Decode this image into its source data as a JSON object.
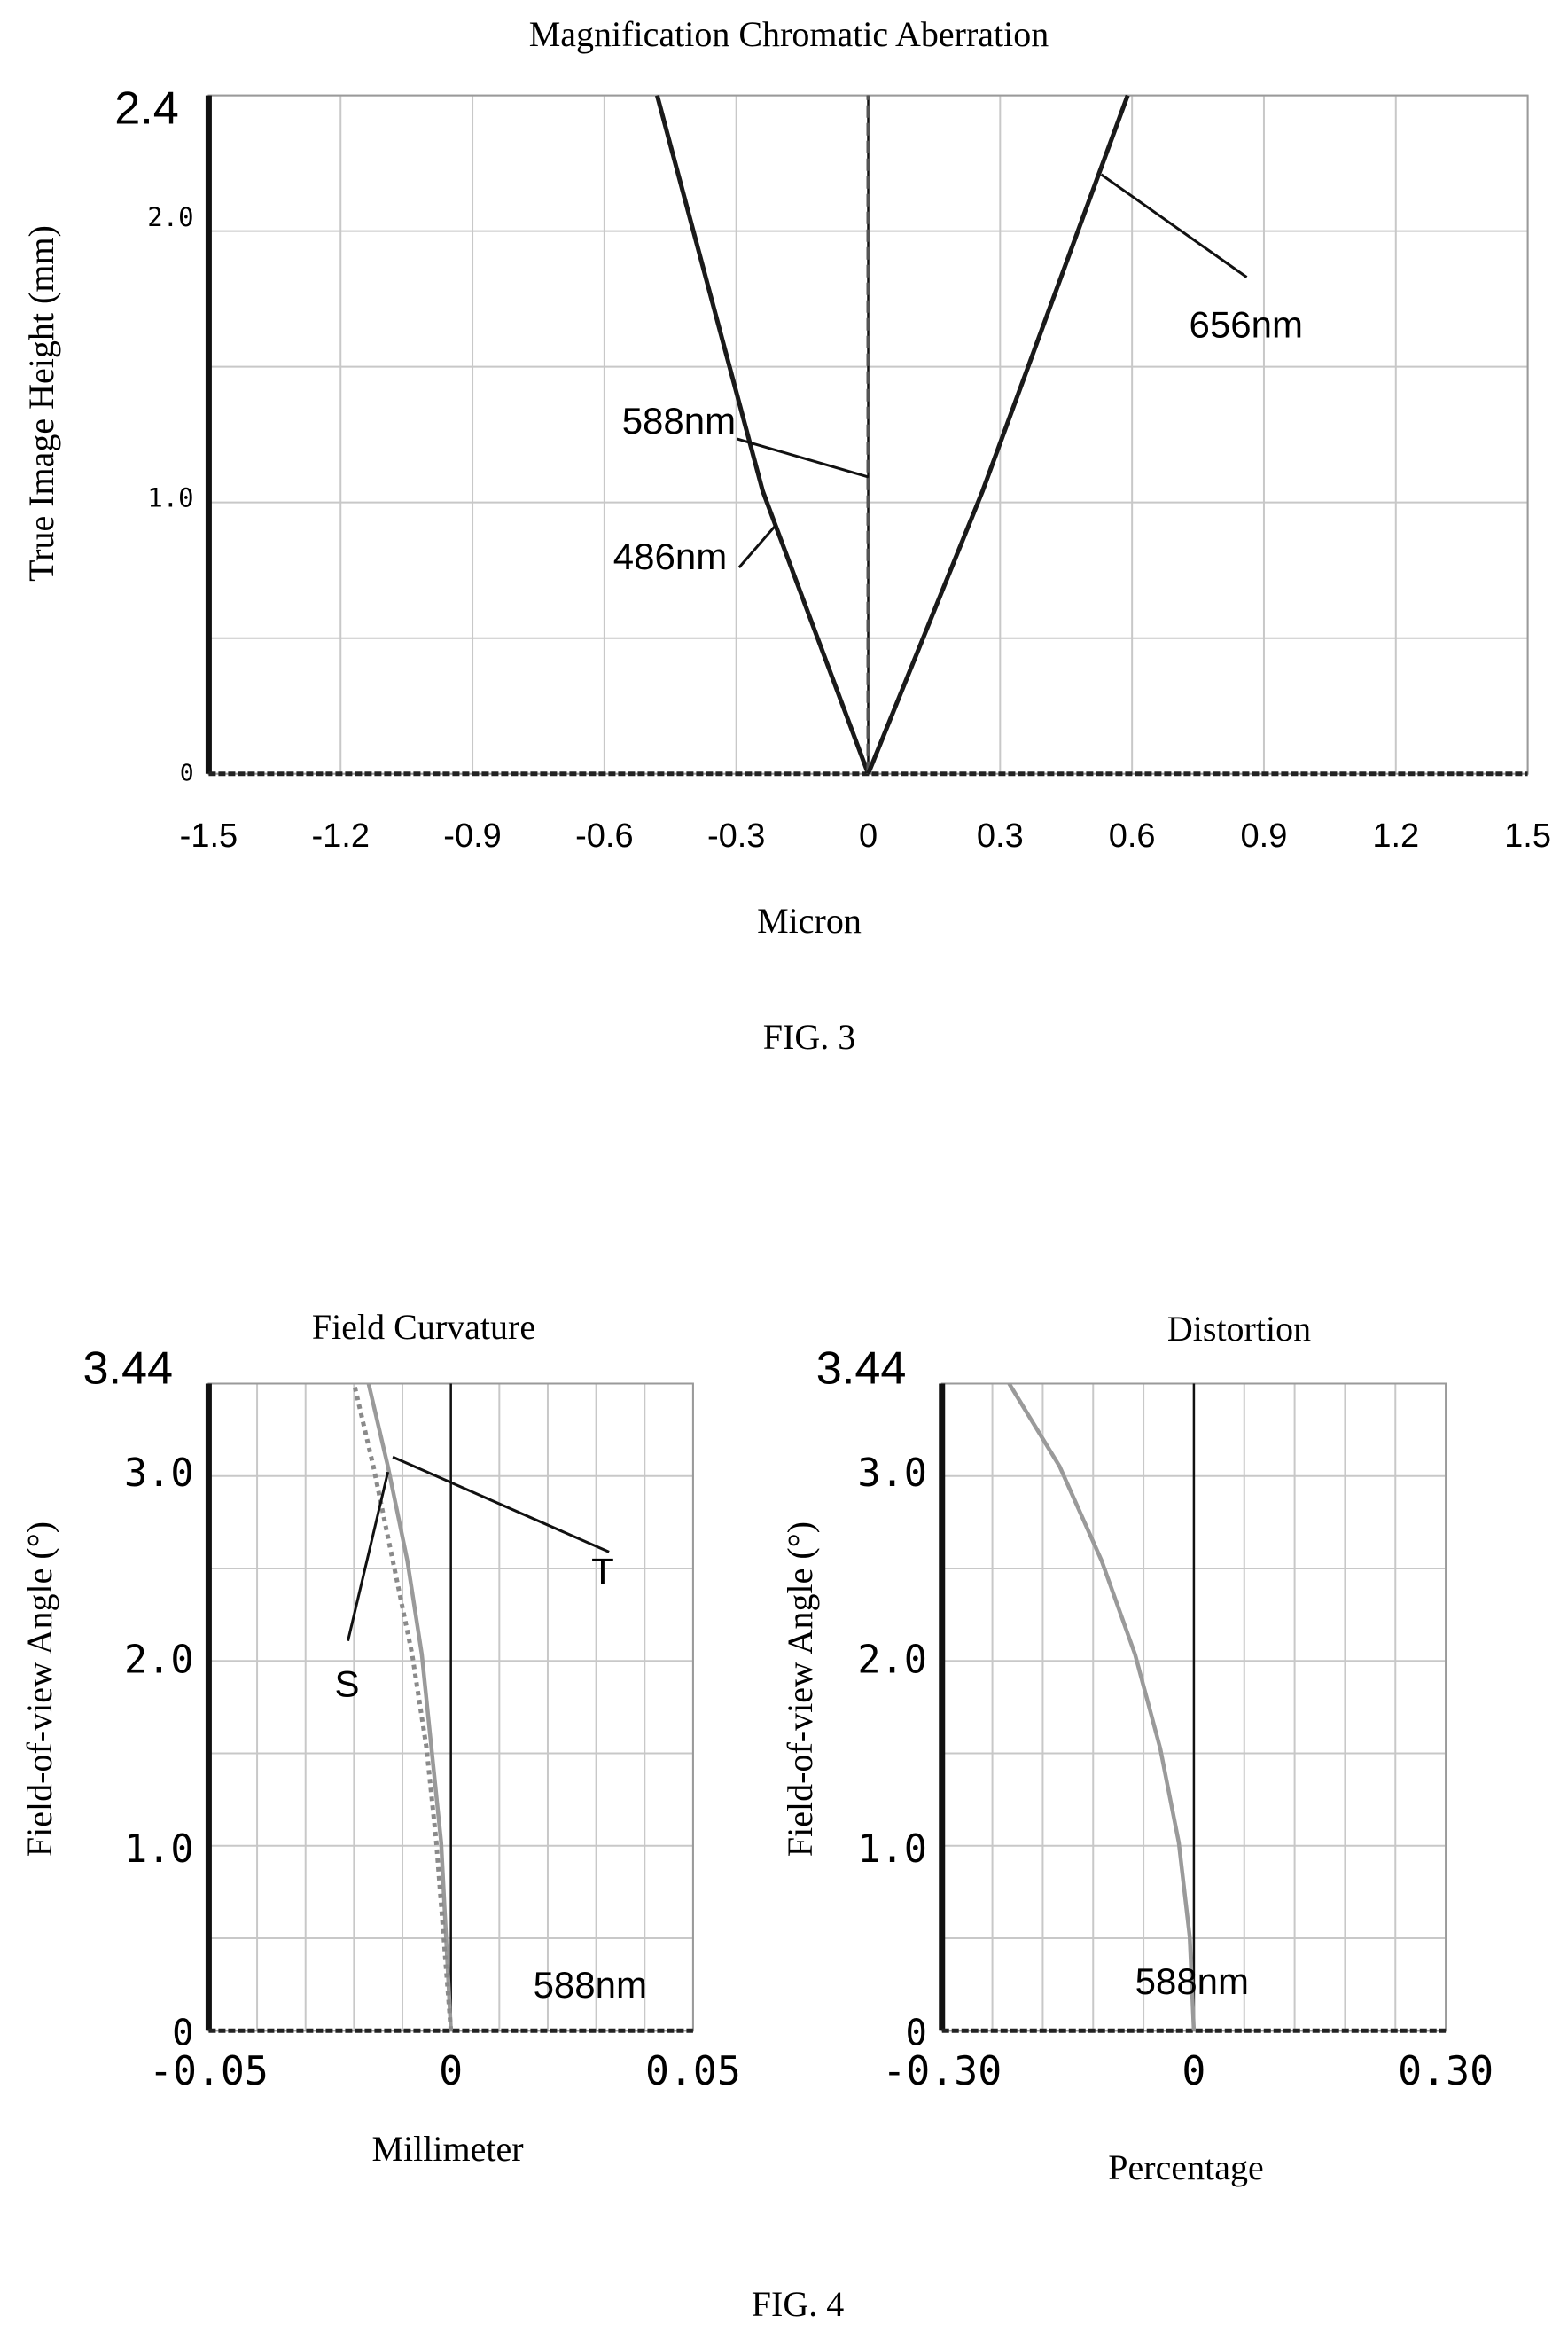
{
  "chart_data": [
    {
      "id": "fig3",
      "type": "line",
      "title": "Magnification Chromatic Aberration",
      "xlabel": "Micron",
      "ylabel": "True Image Height (mm)",
      "caption": "FIG. 3",
      "xlim": [
        -1.5,
        1.5
      ],
      "ylim": [
        0,
        2.4
      ],
      "grid": true,
      "x_ticks": [
        "-1.5",
        "-1.2",
        "-0.9",
        "-0.6",
        "-0.3",
        "0",
        "0.3",
        "0.6",
        "0.9",
        "1.2",
        "1.5"
      ],
      "y_ticks": [
        "0",
        "1.0",
        "2.0",
        "2.4"
      ],
      "series": [
        {
          "name": "486nm",
          "color": "#1a1a1a",
          "points": [
            [
              0,
              0
            ],
            [
              -0.24,
              1.0
            ],
            [
              -0.48,
              2.4
            ]
          ]
        },
        {
          "name": "588nm",
          "color": "#555555",
          "points": [
            [
              0,
              0
            ],
            [
              0,
              2.4
            ]
          ]
        },
        {
          "name": "656nm",
          "color": "#1a1a1a",
          "points": [
            [
              0,
              0
            ],
            [
              0.26,
              1.0
            ],
            [
              0.59,
              2.4
            ]
          ]
        }
      ],
      "annotations": [
        {
          "text": "656nm",
          "target": [
            0.53,
            2.12
          ],
          "label_at": [
            0.75,
            1.6
          ]
        },
        {
          "text": "588nm",
          "target": [
            0.0,
            1.05
          ],
          "label_at": [
            -0.56,
            1.26
          ]
        },
        {
          "text": "486nm",
          "target": [
            -0.21,
            0.88
          ],
          "label_at": [
            -0.58,
            0.78
          ]
        }
      ]
    },
    {
      "id": "fig4a",
      "type": "line",
      "title": "Field Curvature",
      "xlabel": "Millimeter",
      "ylabel": "Field-of-view Angle (°)",
      "xlim": [
        -0.05,
        0.05
      ],
      "ylim": [
        0,
        3.44
      ],
      "grid": true,
      "x_ticks": [
        "-0.05",
        "0",
        "0.05"
      ],
      "y_ticks": [
        "0",
        "1.0",
        "2.0",
        "3.0",
        "3.44"
      ],
      "series": [
        {
          "name": "T",
          "color": "#9a9a9a",
          "dashed": false,
          "points": [
            [
              0,
              0
            ],
            [
              -0.001,
              0.5
            ],
            [
              -0.002,
              1.0
            ],
            [
              -0.004,
              1.5
            ],
            [
              -0.006,
              2.0
            ],
            [
              -0.009,
              2.5
            ],
            [
              -0.013,
              3.0
            ],
            [
              -0.017,
              3.44
            ]
          ]
        },
        {
          "name": "S",
          "color": "#8a8a8a",
          "dashed": true,
          "points": [
            [
              0,
              0
            ],
            [
              -0.0015,
              0.5
            ],
            [
              -0.003,
              1.0
            ],
            [
              -0.005,
              1.5
            ],
            [
              -0.008,
              2.0
            ],
            [
              -0.012,
              2.5
            ],
            [
              -0.016,
              3.0
            ],
            [
              -0.02,
              3.44
            ]
          ]
        }
      ],
      "annotations": [
        {
          "text": "T",
          "target": [
            -0.012,
            3.05
          ],
          "label_at": [
            0.029,
            2.46
          ]
        },
        {
          "text": "S",
          "target": [
            -0.013,
            2.97
          ],
          "label_at": [
            -0.024,
            1.86
          ]
        },
        {
          "text": "588nm",
          "label_at": [
            0.017,
            0.26
          ]
        }
      ]
    },
    {
      "id": "fig4b",
      "type": "line",
      "title": "Distortion",
      "xlabel": "Percentage",
      "ylabel": "Field-of-view Angle (°)",
      "caption": "FIG. 4",
      "xlim": [
        -0.3,
        0.3
      ],
      "ylim": [
        0,
        3.44
      ],
      "grid": true,
      "x_ticks": [
        "-0.30",
        "0",
        "0.30"
      ],
      "y_ticks": [
        "0",
        "1.0",
        "2.0",
        "3.0",
        "3.44"
      ],
      "series": [
        {
          "name": "588nm",
          "color": "#9a9a9a",
          "points": [
            [
              0,
              0
            ],
            [
              -0.005,
              0.5
            ],
            [
              -0.018,
              1.0
            ],
            [
              -0.04,
              1.5
            ],
            [
              -0.07,
              2.0
            ],
            [
              -0.11,
              2.5
            ],
            [
              -0.16,
              3.0
            ],
            [
              -0.22,
              3.44
            ]
          ]
        }
      ],
      "annotations": [
        {
          "text": "588nm",
          "label_at": [
            -0.07,
            0.28
          ]
        }
      ]
    }
  ]
}
